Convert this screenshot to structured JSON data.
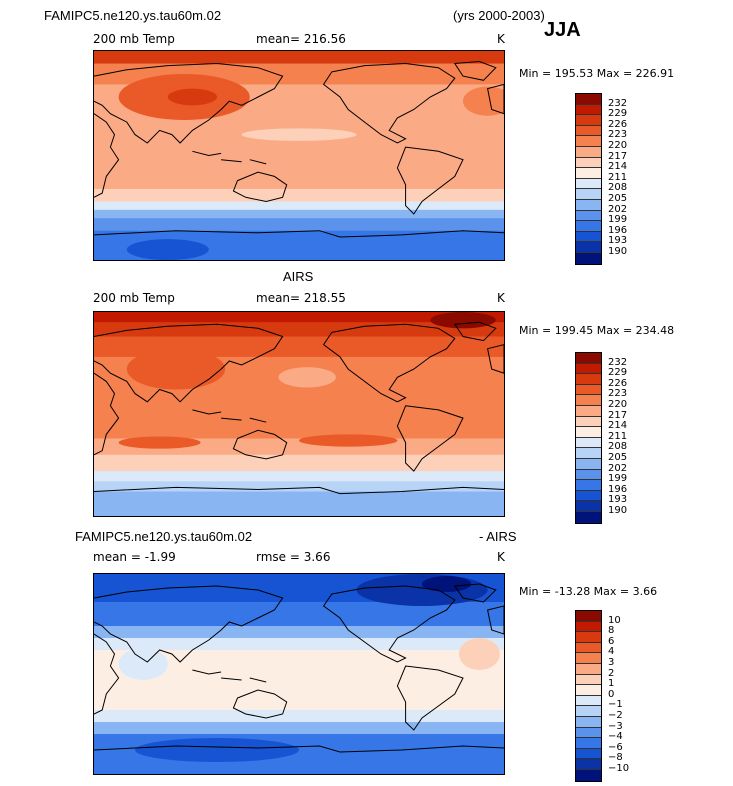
{
  "title": {
    "model": "FAMIPC5.ne120.ys.tau60m.02",
    "years": "(yrs 2000-2003)",
    "season": "JJA"
  },
  "panels": [
    {
      "heading": "",
      "field": "200 mb Temp",
      "stat": "mean= 216.56",
      "units": "K",
      "minmax": "Min = 195.53 Max = 226.91",
      "colorbar": {
        "labels": [
          "232",
          "229",
          "226",
          "223",
          "220",
          "217",
          "214",
          "211",
          "208",
          "205",
          "202",
          "199",
          "196",
          "193",
          "190"
        ],
        "colors": [
          "#8b0a00",
          "#c21a00",
          "#d83a10",
          "#ea5a28",
          "#f5814e",
          "#fbaa86",
          "#fdd1b9",
          "#fdeee4",
          "#dce9f8",
          "#b7d3f6",
          "#89b6f2",
          "#5b93ec",
          "#3676e6",
          "#1654d4",
          "#0a33a8",
          "#00137a"
        ]
      },
      "map_profile": [
        {
          "from": 0,
          "to": 6,
          "color": "#d83a10"
        },
        {
          "from": 6,
          "to": 16,
          "color": "#f5814e"
        },
        {
          "from": 16,
          "to": 66,
          "color": "#fbaa86"
        },
        {
          "from": 66,
          "to": 72,
          "color": "#fdd1b9"
        },
        {
          "from": 72,
          "to": 76,
          "color": "#dce9f8"
        },
        {
          "from": 76,
          "to": 80,
          "color": "#89b6f2"
        },
        {
          "from": 80,
          "to": 86,
          "color": "#5b93ec"
        },
        {
          "from": 86,
          "to": 100,
          "color": "#3676e6"
        }
      ],
      "map_blobs": [
        {
          "x": 22,
          "y": 22,
          "rx": 16,
          "ry": 11,
          "color": "#ea5a28"
        },
        {
          "x": 24,
          "y": 22,
          "rx": 6,
          "ry": 4,
          "color": "#d83a10"
        },
        {
          "x": 96,
          "y": 24,
          "rx": 6,
          "ry": 7,
          "color": "#f5814e"
        },
        {
          "x": 50,
          "y": 40,
          "rx": 14,
          "ry": 3,
          "color": "#fdd1b9"
        },
        {
          "x": 18,
          "y": 95,
          "rx": 10,
          "ry": 5,
          "color": "#1654d4"
        }
      ]
    },
    {
      "heading": "AIRS",
      "field": "200 mb Temp",
      "stat": "mean= 218.55",
      "units": "K",
      "minmax": "Min = 199.45 Max = 234.48",
      "colorbar": {
        "labels": [
          "232",
          "229",
          "226",
          "223",
          "220",
          "217",
          "214",
          "211",
          "208",
          "205",
          "202",
          "199",
          "196",
          "193",
          "190"
        ],
        "colors": [
          "#8b0a00",
          "#c21a00",
          "#d83a10",
          "#ea5a28",
          "#f5814e",
          "#fbaa86",
          "#fdd1b9",
          "#fdeee4",
          "#dce9f8",
          "#b7d3f6",
          "#89b6f2",
          "#5b93ec",
          "#3676e6",
          "#1654d4",
          "#0a33a8",
          "#00137a"
        ]
      },
      "map_profile": [
        {
          "from": 0,
          "to": 5,
          "color": "#c21a00"
        },
        {
          "from": 5,
          "to": 12,
          "color": "#d83a10"
        },
        {
          "from": 12,
          "to": 22,
          "color": "#ea5a28"
        },
        {
          "from": 22,
          "to": 62,
          "color": "#f5814e"
        },
        {
          "from": 62,
          "to": 70,
          "color": "#fbaa86"
        },
        {
          "from": 70,
          "to": 78,
          "color": "#fdd1b9"
        },
        {
          "from": 78,
          "to": 83,
          "color": "#dce9f8"
        },
        {
          "from": 83,
          "to": 88,
          "color": "#b7d3f6"
        },
        {
          "from": 88,
          "to": 100,
          "color": "#89b6f2"
        }
      ],
      "map_blobs": [
        {
          "x": 20,
          "y": 28,
          "rx": 12,
          "ry": 10,
          "color": "#ea5a28"
        },
        {
          "x": 52,
          "y": 32,
          "rx": 7,
          "ry": 5,
          "color": "#fbaa86"
        },
        {
          "x": 62,
          "y": 63,
          "rx": 12,
          "ry": 3,
          "color": "#ea5a28"
        },
        {
          "x": 16,
          "y": 64,
          "rx": 10,
          "ry": 3,
          "color": "#ea5a28"
        },
        {
          "x": 90,
          "y": 4,
          "rx": 8,
          "ry": 4,
          "color": "#8b0a00"
        }
      ]
    },
    {
      "heading": "FAMIPC5.ne120.ys.tau60m.02",
      "heading_suffix": "- AIRS",
      "field": "mean =  -1.99",
      "stat": "rmse =   3.66",
      "units": "K",
      "minmax": "Min = -13.28 Max =   3.66",
      "colorbar": {
        "labels": [
          "10",
          "8",
          "6",
          "4",
          "3",
          "2",
          "1",
          "0",
          "−1",
          "−2",
          "−3",
          "−4",
          "−6",
          "−8",
          "−10"
        ],
        "colors": [
          "#8b0a00",
          "#c21a00",
          "#d83a10",
          "#ea5a28",
          "#f5814e",
          "#fbaa86",
          "#fdd1b9",
          "#fdeee4",
          "#dce9f8",
          "#b7d3f6",
          "#89b6f2",
          "#5b93ec",
          "#3676e6",
          "#1654d4",
          "#0a33a8",
          "#00137a"
        ]
      },
      "map_profile": [
        {
          "from": 0,
          "to": 14,
          "color": "#1654d4"
        },
        {
          "from": 14,
          "to": 26,
          "color": "#3676e6"
        },
        {
          "from": 26,
          "to": 32,
          "color": "#89b6f2"
        },
        {
          "from": 32,
          "to": 38,
          "color": "#dce9f8"
        },
        {
          "from": 38,
          "to": 68,
          "color": "#fdeee4"
        },
        {
          "from": 68,
          "to": 74,
          "color": "#dce9f8"
        },
        {
          "from": 74,
          "to": 80,
          "color": "#89b6f2"
        },
        {
          "from": 80,
          "to": 100,
          "color": "#3676e6"
        }
      ],
      "map_blobs": [
        {
          "x": 80,
          "y": 8,
          "rx": 16,
          "ry": 8,
          "color": "#0a33a8"
        },
        {
          "x": 86,
          "y": 5,
          "rx": 6,
          "ry": 4,
          "color": "#00137a"
        },
        {
          "x": 12,
          "y": 45,
          "rx": 6,
          "ry": 8,
          "color": "#dce9f8"
        },
        {
          "x": 30,
          "y": 88,
          "rx": 20,
          "ry": 6,
          "color": "#1654d4"
        },
        {
          "x": 94,
          "y": 40,
          "rx": 5,
          "ry": 8,
          "color": "#fdd1b9"
        }
      ]
    }
  ]
}
